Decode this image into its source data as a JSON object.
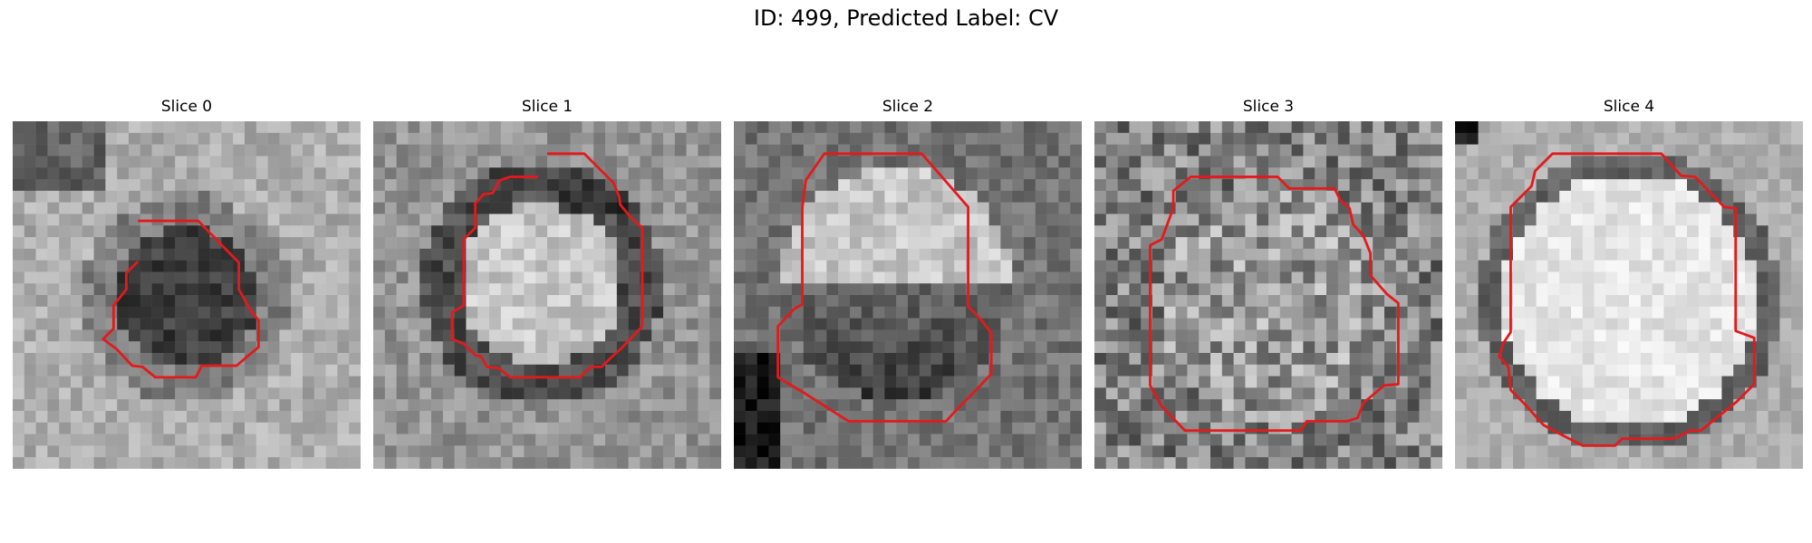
{
  "figure": {
    "title": "ID: 499, Predicted Label: CV"
  },
  "contour_color": "#e31a1c",
  "panels": [
    {
      "title": "Slice 0",
      "pattern": "dark-center"
    },
    {
      "title": "Slice 1",
      "pattern": "bright-ring"
    },
    {
      "title": "Slice 2",
      "pattern": "bright-top"
    },
    {
      "title": "Slice 3",
      "pattern": "noisy"
    },
    {
      "title": "Slice 4",
      "pattern": "bright-disk"
    }
  ]
}
